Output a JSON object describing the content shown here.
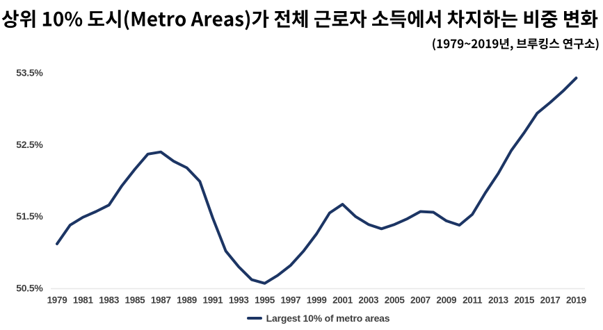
{
  "page": {
    "background": "#ffffff"
  },
  "header": {
    "title": "상위 10% 도시(Metro Areas)가 전체 근로자 소득에서 차지하는 비중 변화",
    "subtitle": "(1979~2019년, 브루킹스 연구소)"
  },
  "chart_data": {
    "type": "line",
    "title": "상위 10% 도시(Metro Areas)가 전체 근로자 소득에서 차지하는 비중 변화",
    "subtitle": "(1979~2019년, 브루킹스 연구소)",
    "xlabel": "",
    "ylabel": "",
    "ylim": [
      50.5,
      53.5
    ],
    "xlim": [
      1979,
      2019
    ],
    "grid": false,
    "legend_position": "bottom",
    "y_tick_labels": [
      "50.5%",
      "51.5%",
      "52.5%",
      "53.5%"
    ],
    "y_ticks": [
      50.5,
      51.5,
      52.5,
      53.5
    ],
    "x_ticks": [
      1979,
      1981,
      1983,
      1985,
      1987,
      1989,
      1991,
      1993,
      1995,
      1997,
      1999,
      2001,
      2003,
      2005,
      2007,
      2009,
      2011,
      2013,
      2015,
      2017,
      2019
    ],
    "x": [
      1979,
      1980,
      1981,
      1982,
      1983,
      1984,
      1985,
      1986,
      1987,
      1988,
      1989,
      1990,
      1991,
      1992,
      1993,
      1994,
      1995,
      1996,
      1997,
      1998,
      1999,
      2000,
      2001,
      2002,
      2003,
      2004,
      2005,
      2006,
      2007,
      2008,
      2009,
      2010,
      2011,
      2012,
      2013,
      2014,
      2015,
      2016,
      2017,
      2018,
      2019
    ],
    "series": [
      {
        "name": "Largest 10% of metro areas",
        "color": "#1c3564",
        "values": [
          51.12,
          51.38,
          51.49,
          51.57,
          51.66,
          51.93,
          52.16,
          52.37,
          52.4,
          52.27,
          52.18,
          51.99,
          51.48,
          51.02,
          50.8,
          50.62,
          50.57,
          50.68,
          50.82,
          51.02,
          51.26,
          51.55,
          51.67,
          51.5,
          51.39,
          51.33,
          51.39,
          51.47,
          51.57,
          51.56,
          51.44,
          51.38,
          51.53,
          51.83,
          52.1,
          52.42,
          52.67,
          52.94,
          53.09,
          53.25,
          53.43
        ]
      }
    ]
  },
  "legend": {
    "label": "Largest 10% of metro areas"
  },
  "colors": {
    "line": "#1c3564",
    "axis_text": "#3f3f3f",
    "axis_line": "#e7e7e7",
    "title_text": "#000000"
  }
}
